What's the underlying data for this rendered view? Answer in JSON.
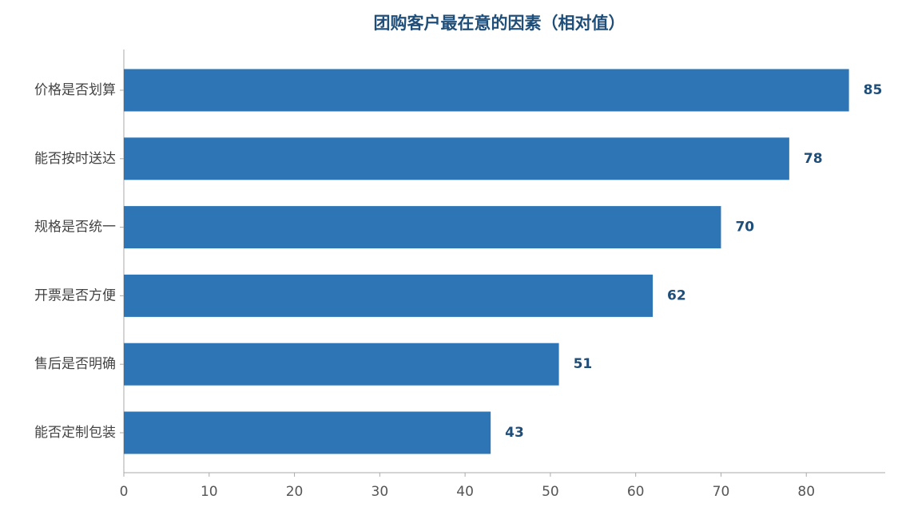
{
  "chart_data": {
    "type": "barh",
    "title": "团购客户最在意的因素（相对值）",
    "categories": [
      "价格是否划算",
      "能否按时送达",
      "规格是否统一",
      "开票是否方便",
      "售后是否明确",
      "能否定制包装"
    ],
    "values": [
      85,
      78,
      70,
      62,
      51,
      43
    ],
    "color": "#2e75b6",
    "xlim": [
      0,
      89.25
    ],
    "xticks": [
      0,
      10,
      20,
      30,
      40,
      50,
      60,
      70,
      80
    ],
    "grid": false
  }
}
